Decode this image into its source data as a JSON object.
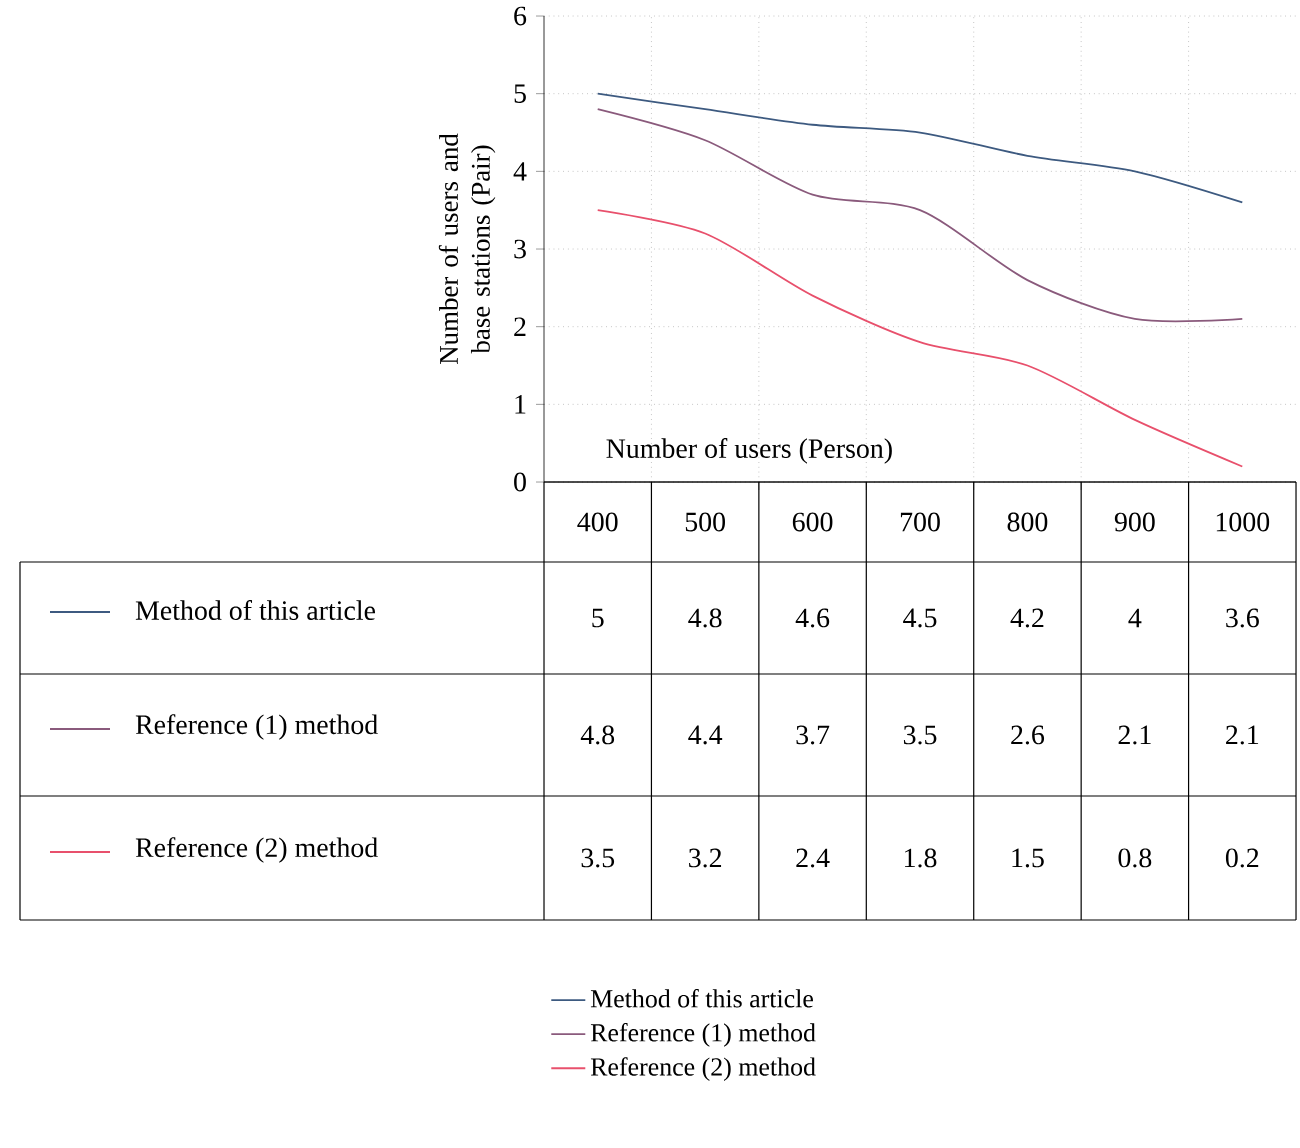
{
  "chart_data": {
    "type": "line",
    "ylabel": "Number of users and base stations (Pair)",
    "xlabel": "Number of users (Person)",
    "categories": [
      "400",
      "500",
      "600",
      "700",
      "800",
      "900",
      "1000"
    ],
    "series": [
      {
        "name": "Method of this article",
        "color": "#3d5a80",
        "values": [
          5,
          4.8,
          4.6,
          4.5,
          4.2,
          4,
          3.6
        ]
      },
      {
        "name": "Reference (1) method",
        "color": "#8a5a7c",
        "values": [
          4.8,
          4.4,
          3.7,
          3.5,
          2.6,
          2.1,
          2.1
        ]
      },
      {
        "name": "Reference (2) method",
        "color": "#e8506c",
        "values": [
          3.5,
          3.2,
          2.4,
          1.8,
          1.5,
          0.8,
          0.2
        ]
      }
    ],
    "ylim": [
      0,
      6
    ],
    "yticks": [
      0,
      1,
      2,
      3,
      4,
      5,
      6
    ],
    "grid": true,
    "data_labels": true,
    "legend": "bottom",
    "marker": "none",
    "line_style": "solid"
  }
}
